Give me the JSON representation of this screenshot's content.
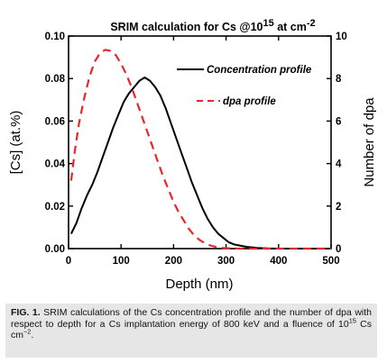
{
  "chart_data": {
    "type": "line",
    "title": {
      "prefix": "SRIM calculation for Cs @10",
      "sup1": "15",
      "middle": " at cm",
      "sup2": "-2"
    },
    "xlabel": "Depth (nm)",
    "ylabel_left": "[Cs] (at.%)",
    "ylabel_right": "Number of dpa",
    "xlim": [
      0,
      500
    ],
    "ylim_left": [
      0.0,
      0.1
    ],
    "ylim_right": [
      0,
      10
    ],
    "x_ticks": [
      "0",
      "100",
      "200",
      "300",
      "400",
      "500"
    ],
    "y_left_ticks": [
      "0.00",
      "0.02",
      "0.04",
      "0.06",
      "0.08",
      "0.10"
    ],
    "y_right_ticks": [
      "0",
      "2",
      "4",
      "6",
      "8",
      "10"
    ],
    "legend_position": "top-right",
    "series": [
      {
        "name": "Concentration profile",
        "axis": "left",
        "style": "solid",
        "color": "#000000",
        "points": [
          [
            5,
            0.007
          ],
          [
            15,
            0.012
          ],
          [
            25,
            0.019
          ],
          [
            35,
            0.025
          ],
          [
            45,
            0.03
          ],
          [
            55,
            0.036
          ],
          [
            65,
            0.043
          ],
          [
            75,
            0.05
          ],
          [
            85,
            0.057
          ],
          [
            95,
            0.063
          ],
          [
            105,
            0.069
          ],
          [
            115,
            0.073
          ],
          [
            125,
            0.076
          ],
          [
            135,
            0.079
          ],
          [
            145,
            0.0805
          ],
          [
            155,
            0.079
          ],
          [
            165,
            0.076
          ],
          [
            175,
            0.072
          ],
          [
            185,
            0.066
          ],
          [
            195,
            0.059
          ],
          [
            205,
            0.052
          ],
          [
            215,
            0.045
          ],
          [
            225,
            0.038
          ],
          [
            235,
            0.031
          ],
          [
            245,
            0.025
          ],
          [
            255,
            0.019
          ],
          [
            265,
            0.014
          ],
          [
            275,
            0.01
          ],
          [
            285,
            0.007
          ],
          [
            295,
            0.005
          ],
          [
            305,
            0.003
          ],
          [
            315,
            0.002
          ],
          [
            325,
            0.0015
          ],
          [
            340,
            0.0008
          ],
          [
            360,
            0.0003
          ],
          [
            380,
            0.0001
          ],
          [
            400,
            0.0
          ],
          [
            500,
            0.0
          ]
        ]
      },
      {
        "name": "dpa profile",
        "axis": "right",
        "style": "dashed",
        "color": "#e8262c",
        "points": [
          [
            5,
            3.2
          ],
          [
            12,
            4.6
          ],
          [
            20,
            5.9
          ],
          [
            30,
            7.1
          ],
          [
            40,
            8.1
          ],
          [
            50,
            8.8
          ],
          [
            60,
            9.2
          ],
          [
            70,
            9.35
          ],
          [
            80,
            9.3
          ],
          [
            90,
            9.1
          ],
          [
            100,
            8.7
          ],
          [
            110,
            8.2
          ],
          [
            120,
            7.6
          ],
          [
            130,
            6.9
          ],
          [
            140,
            6.2
          ],
          [
            150,
            5.5
          ],
          [
            160,
            4.8
          ],
          [
            170,
            4.1
          ],
          [
            180,
            3.4
          ],
          [
            190,
            2.8
          ],
          [
            200,
            2.2
          ],
          [
            210,
            1.7
          ],
          [
            220,
            1.3
          ],
          [
            230,
            0.9
          ],
          [
            240,
            0.6
          ],
          [
            250,
            0.4
          ],
          [
            260,
            0.25
          ],
          [
            270,
            0.15
          ],
          [
            280,
            0.08
          ],
          [
            290,
            0.04
          ],
          [
            300,
            0.02
          ],
          [
            320,
            0.005
          ],
          [
            340,
            0.0
          ],
          [
            500,
            0.0
          ]
        ]
      }
    ]
  },
  "caption": {
    "label": "FIG. 1.",
    "text1": " SRIM calculations of the Cs concentration profile and the number of dpa with respect to depth for a Cs implantation energy of 800 keV and a fluence of 10",
    "sup": "15",
    "text2": " Cs cm",
    "sup2": "−2",
    "end": "."
  }
}
